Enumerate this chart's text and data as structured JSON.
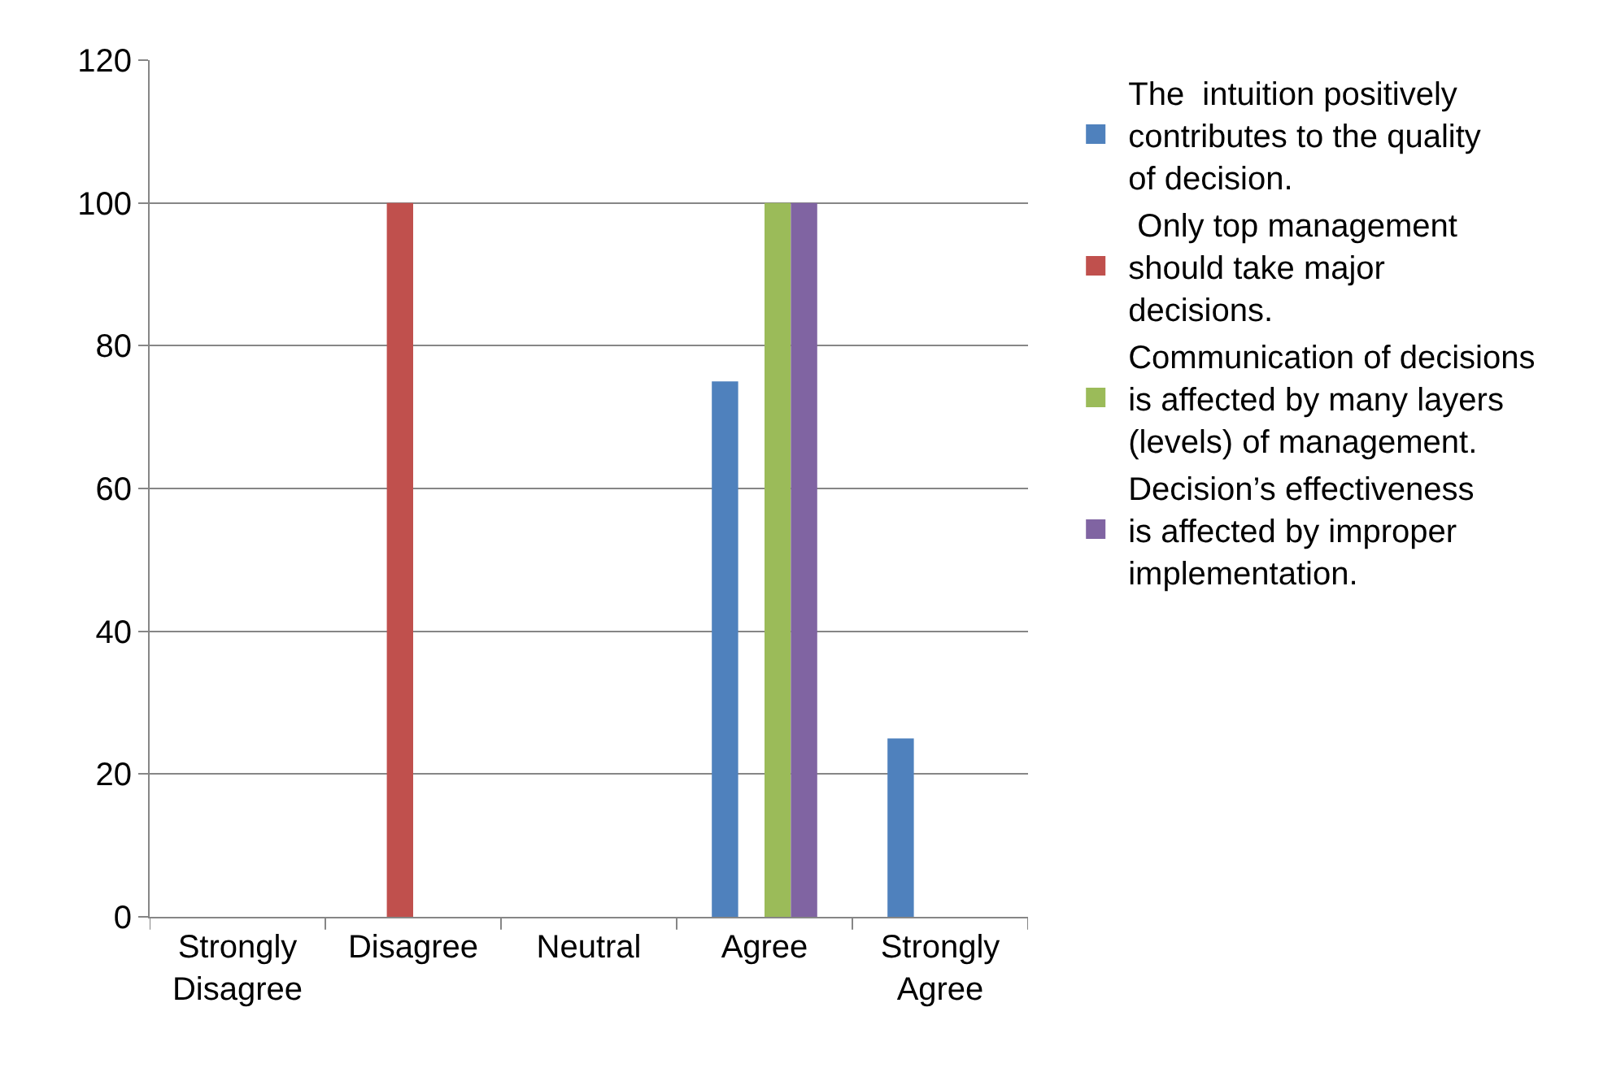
{
  "chart_data": {
    "type": "bar",
    "categories": [
      "Strongly Disagree",
      "Disagree",
      "Neutral",
      "Agree",
      "Strongly Agree"
    ],
    "series": [
      {
        "name": "The  intuition positively contributes to the quality of decision.",
        "color": "#4f81bd",
        "values": [
          0,
          0,
          0,
          75,
          25
        ]
      },
      {
        "name": " Only top management should take major decisions.",
        "color": "#c0504d",
        "values": [
          0,
          100,
          0,
          0,
          0
        ]
      },
      {
        "name": "Communication of decisions is affected by many layers (levels) of management.",
        "color": "#9bbb59",
        "values": [
          0,
          0,
          0,
          100,
          0
        ]
      },
      {
        "name": "Decision’s effectiveness is affected by improper implementation.",
        "color": "#8064a2",
        "values": [
          0,
          0,
          0,
          100,
          0
        ]
      }
    ],
    "ylim": [
      0,
      120
    ],
    "yticks": [
      0,
      20,
      40,
      60,
      80,
      100,
      120
    ],
    "grid": "y",
    "legend": "right"
  }
}
